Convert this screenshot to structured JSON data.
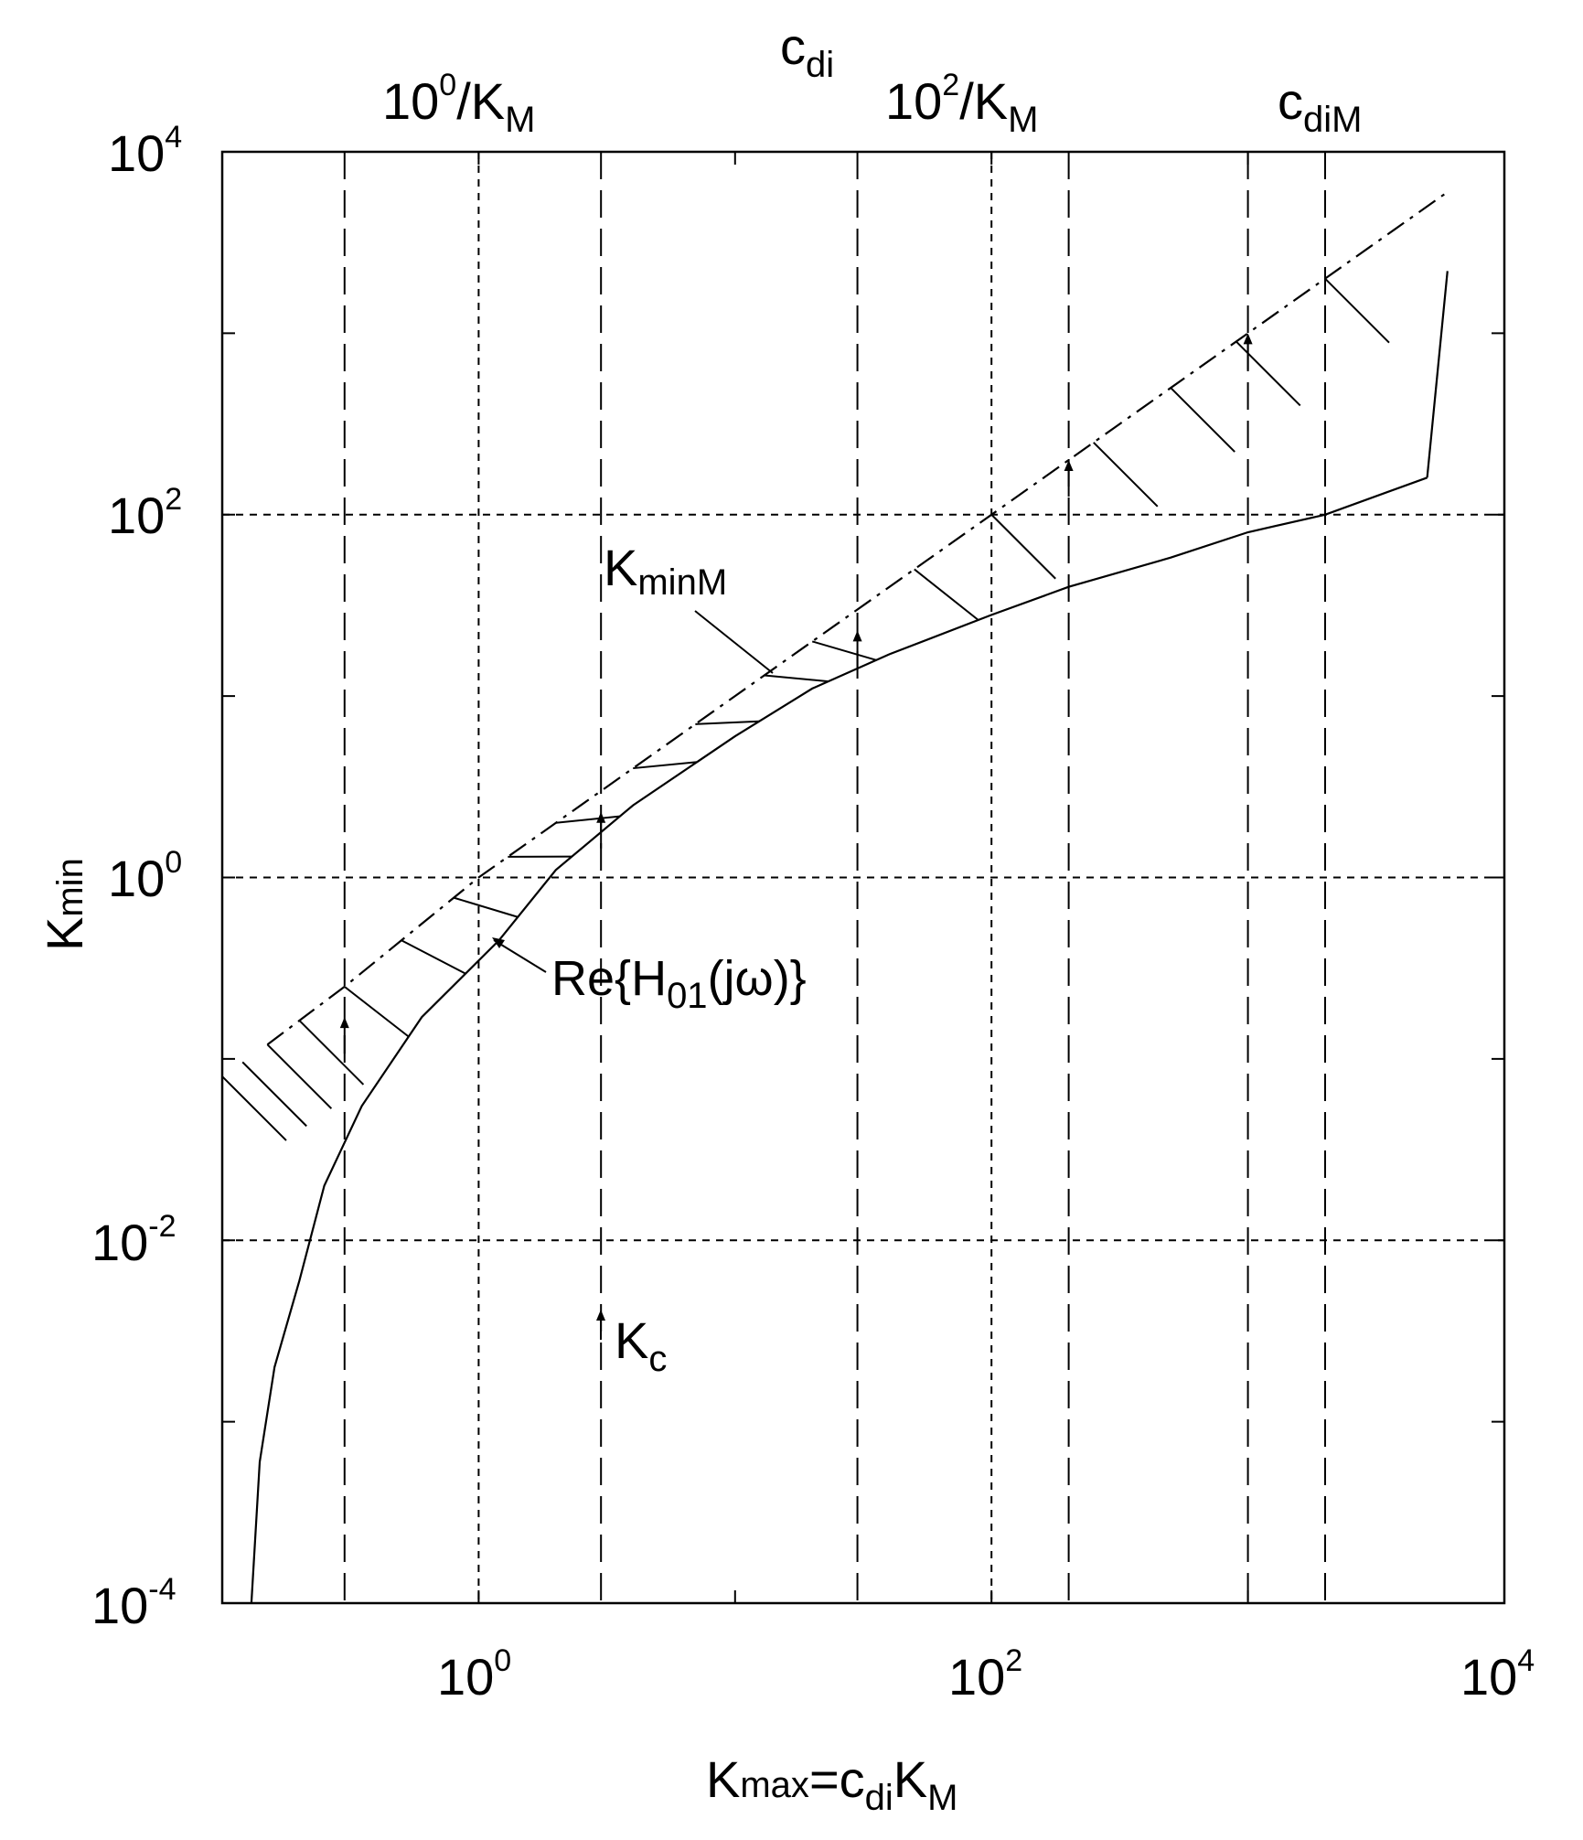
{
  "chart_data": {
    "type": "line",
    "x_scale": "log",
    "y_scale": "log",
    "xlim": [
      0.1,
      10000
    ],
    "ylim": [
      0.0001,
      10000
    ],
    "grid": "dashed at decades 10^0, 10^2 (x) and 10^-2, 10^0, 10^2 (y)",
    "x_ticks": [
      {
        "base": "10",
        "exp": "0",
        "value": 1
      },
      {
        "base": "10",
        "exp": "2",
        "value": 100
      },
      {
        "base": "10",
        "exp": "4",
        "value": 10000
      }
    ],
    "y_ticks": [
      {
        "base": "10",
        "exp": "-4",
        "value": 0.0001
      },
      {
        "base": "10",
        "exp": "-2",
        "value": 0.01
      },
      {
        "base": "10",
        "exp": "0",
        "value": 1
      },
      {
        "base": "10",
        "exp": "2",
        "value": 100
      },
      {
        "base": "10",
        "exp": "4",
        "value": 10000
      }
    ],
    "xlabel": {
      "main": "K",
      "main_sub": "max",
      "eq": "=c",
      "eq_sub": "di",
      "tail": "K",
      "tail_sub": "M"
    },
    "ylabel": {
      "main": "K",
      "sub": "min"
    },
    "top_labels": [
      {
        "base": "10",
        "exp": "0",
        "rest": "/K",
        "sub": "M"
      },
      {
        "main": "c",
        "sub": "di"
      },
      {
        "base": "10",
        "exp": "2",
        "rest": "/K",
        "sub": "M"
      },
      {
        "main": "c",
        "sub": "diM"
      }
    ],
    "annotations": {
      "kminM": {
        "main": "K",
        "sub": "minM"
      },
      "re_h": {
        "pre": "Re{H",
        "sub": "01",
        "post": "(jω)}"
      },
      "kc": {
        "main": "K",
        "sub": "c"
      }
    },
    "series": [
      {
        "name": "Re{H01(jω)}",
        "style": "solid",
        "points": [
          [
            0.13,
            0.0001
          ],
          [
            0.14,
            0.0006
          ],
          [
            0.16,
            0.002
          ],
          [
            0.2,
            0.006
          ],
          [
            0.25,
            0.02
          ],
          [
            0.35,
            0.055
          ],
          [
            0.6,
            0.17
          ],
          [
            1.2,
            0.45
          ],
          [
            2,
            1.1
          ],
          [
            4,
            2.5
          ],
          [
            10,
            6
          ],
          [
            20,
            11
          ],
          [
            40,
            17
          ],
          [
            100,
            28
          ],
          [
            200,
            40
          ],
          [
            500,
            58
          ],
          [
            1000,
            80
          ],
          [
            2000,
            100
          ],
          [
            5000,
            160
          ]
        ]
      },
      {
        "name": "vertical edge",
        "style": "solid",
        "points": [
          [
            5000,
            160
          ],
          [
            6000,
            2200
          ]
        ]
      },
      {
        "name": "KminM",
        "style": "dash-dot",
        "points": [
          [
            0.15,
            0.12
          ],
          [
            0.3,
            0.25
          ],
          [
            1,
            1
          ],
          [
            3,
            3
          ],
          [
            10,
            10
          ],
          [
            30,
            30
          ],
          [
            100,
            100
          ],
          [
            300,
            300
          ],
          [
            1000,
            1000
          ],
          [
            3000,
            3000
          ],
          [
            6000,
            6000
          ]
        ]
      }
    ],
    "marker_lines_x": [
      0.3,
      3,
      30,
      200,
      1000,
      2000
    ],
    "arrow_points": [
      [
        0.3,
        0.17
      ],
      [
        3,
        2.3
      ],
      [
        30,
        23
      ],
      [
        200,
        200
      ],
      [
        1000,
        1000
      ]
    ],
    "hatch_x": [
      0.1,
      0.12,
      0.15,
      0.2,
      0.3,
      0.5,
      0.8,
      1.3,
      2,
      4,
      7,
      13,
      20,
      50,
      100,
      250,
      500,
      900,
      2000
    ]
  }
}
